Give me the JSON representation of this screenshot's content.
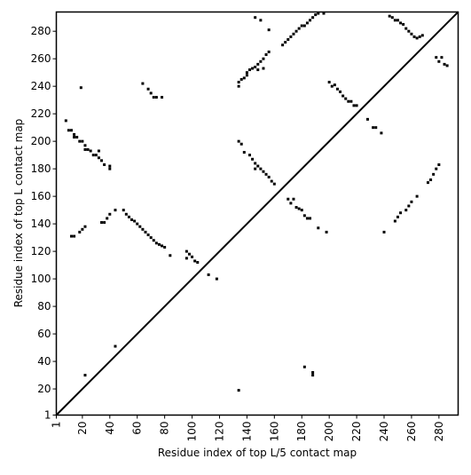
{
  "chart_data": {
    "type": "scatter",
    "x_label": "Residue index of top L/5 contact map",
    "y_label": "Residue index of top L contact map",
    "xlim": [
      1,
      294
    ],
    "ylim": [
      1,
      294
    ],
    "xticks": [
      1,
      20,
      40,
      60,
      80,
      100,
      120,
      140,
      160,
      180,
      200,
      220,
      240,
      260,
      280
    ],
    "yticks": [
      1,
      20,
      40,
      60,
      80,
      100,
      120,
      140,
      160,
      180,
      200,
      220,
      240,
      260,
      280
    ],
    "color": "#000000",
    "diagonal": true,
    "x": [
      8,
      10,
      12,
      14,
      14,
      16,
      18,
      20,
      22,
      22,
      24,
      26,
      28,
      30,
      32,
      32,
      34,
      36,
      40,
      40,
      64,
      68,
      70,
      72,
      74,
      78,
      19,
      12,
      14,
      18,
      20,
      22,
      34,
      36,
      38,
      40,
      44,
      50,
      52,
      54,
      56,
      58,
      60,
      62,
      64,
      66,
      68,
      70,
      72,
      74,
      76,
      78,
      80,
      84,
      96,
      96,
      98,
      100,
      102,
      104,
      112,
      118,
      44,
      22,
      134,
      134,
      136,
      138,
      140,
      140,
      142,
      144,
      146,
      148,
      150,
      152,
      154,
      156,
      152,
      148,
      134,
      136,
      138,
      142,
      144,
      146,
      148,
      150,
      152,
      154,
      156,
      158,
      160,
      146,
      166,
      168,
      170,
      172,
      174,
      176,
      178,
      180,
      182,
      184,
      186,
      188,
      190,
      192,
      196,
      146,
      150,
      156,
      200,
      202,
      204,
      206,
      208,
      210,
      212,
      214,
      216,
      218,
      220,
      228,
      232,
      234,
      238,
      244,
      246,
      248,
      250,
      252,
      254,
      256,
      258,
      260,
      262,
      264,
      266,
      268,
      278,
      280,
      282,
      284,
      286,
      170,
      172,
      174,
      176,
      178,
      180,
      182,
      184,
      186,
      192,
      198,
      248,
      250,
      252,
      256,
      258,
      260,
      264,
      272,
      274,
      276,
      278,
      280,
      240,
      182,
      188,
      188,
      134
    ],
    "values": [
      215,
      208,
      208,
      205,
      203,
      203,
      200,
      200,
      197,
      194,
      194,
      193,
      190,
      190,
      188,
      193,
      186,
      183,
      182,
      180,
      242,
      238,
      235,
      232,
      232,
      232,
      239,
      131,
      131,
      134,
      136,
      138,
      141,
      141,
      144,
      147,
      150,
      150,
      147,
      145,
      143,
      142,
      140,
      138,
      136,
      134,
      132,
      130,
      128,
      126,
      125,
      124,
      123,
      117,
      120,
      115,
      118,
      116,
      113,
      112,
      103,
      100,
      51,
      30,
      240,
      243,
      245,
      246,
      248,
      250,
      252,
      253,
      254,
      256,
      258,
      260,
      263,
      265,
      253,
      252,
      200,
      198,
      192,
      190,
      187,
      184,
      182,
      180,
      178,
      176,
      174,
      171,
      169,
      180,
      270,
      272,
      274,
      276,
      278,
      280,
      282,
      284,
      284,
      286,
      288,
      290,
      292,
      293,
      293,
      290,
      288,
      281,
      243,
      240,
      241,
      238,
      236,
      233,
      231,
      229,
      229,
      226,
      226,
      216,
      210,
      210,
      206,
      291,
      290,
      288,
      288,
      286,
      285,
      282,
      280,
      278,
      276,
      275,
      276,
      277,
      261,
      258,
      261,
      256,
      255,
      158,
      155,
      158,
      152,
      151,
      150,
      146,
      144,
      144,
      137,
      134,
      142,
      145,
      148,
      150,
      153,
      156,
      160,
      170,
      172,
      176,
      180,
      183,
      134,
      36,
      30,
      32,
      19
    ]
  }
}
